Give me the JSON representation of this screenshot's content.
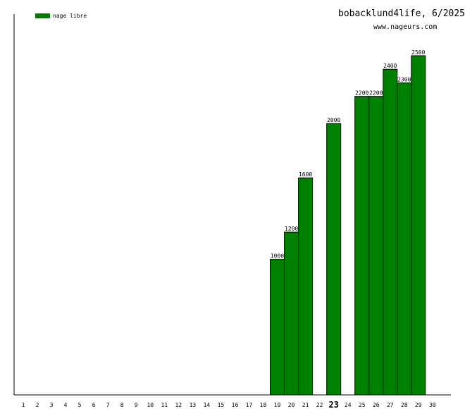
{
  "header": {
    "title": "bobacklund4life, 6/2025",
    "site": "www.nageurs.com"
  },
  "chart_data": {
    "type": "bar",
    "legend_position": "top-left",
    "grid": false,
    "categories": [
      "1",
      "2",
      "3",
      "4",
      "5",
      "6",
      "7",
      "8",
      "9",
      "10",
      "11",
      "12",
      "13",
      "14",
      "15",
      "16",
      "17",
      "18",
      "19",
      "20",
      "21",
      "22",
      "23",
      "24",
      "25",
      "26",
      "27",
      "28",
      "29",
      "30"
    ],
    "highlighted_category": "23",
    "series": [
      {
        "name": "nage libre",
        "color": "#008000",
        "values": [
          0,
          0,
          0,
          0,
          0,
          0,
          0,
          0,
          0,
          0,
          0,
          0,
          0,
          0,
          0,
          0,
          0,
          0,
          1000,
          1200,
          1600,
          0,
          2000,
          0,
          2200,
          2200,
          2400,
          2300,
          2500,
          0
        ]
      }
    ],
    "ylim": [
      0,
      2800
    ]
  }
}
